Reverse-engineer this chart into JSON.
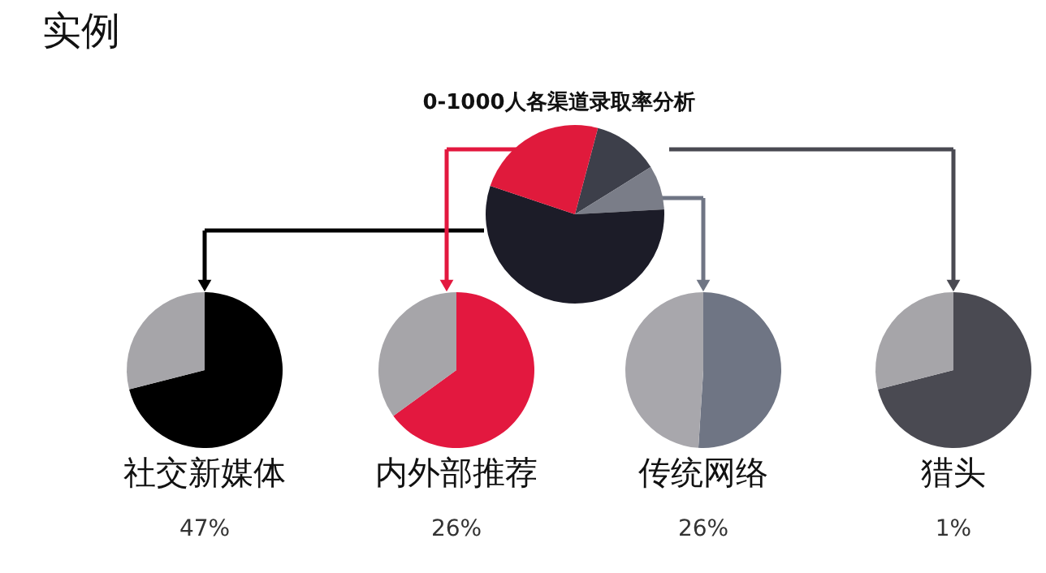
{
  "chart_data": [
    {
      "type": "pie",
      "title": "0-1000人各渠道录取率分析",
      "annotations": [
        "实例"
      ],
      "categories": [
        null,
        null,
        null,
        null
      ],
      "values": [
        12,
        8,
        56,
        24
      ],
      "colors": [
        "#3d3f4a",
        "#7a7d88",
        "#1c1c28",
        "#e01a3c"
      ]
    },
    {
      "type": "pie",
      "title": "社交新媒体",
      "annotations": [
        "47%"
      ],
      "categories": [
        null,
        null
      ],
      "values": [
        71,
        29
      ],
      "colors": [
        "#000000",
        "#a6a5a9"
      ]
    },
    {
      "type": "pie",
      "title": "内外部推荐",
      "annotations": [
        "26%"
      ],
      "categories": [
        null,
        null
      ],
      "values": [
        65,
        35
      ],
      "colors": [
        "#e3183f",
        "#a6a5a9"
      ]
    },
    {
      "type": "pie",
      "title": "传统网络",
      "annotations": [
        "26%"
      ],
      "categories": [
        null,
        null
      ],
      "values": [
        51,
        49
      ],
      "colors": [
        "#6f7584",
        "#a8a7ac"
      ]
    },
    {
      "type": "pie",
      "title": "猎头",
      "annotations": [
        "1%"
      ],
      "categories": [
        null,
        null
      ],
      "values": [
        71,
        29
      ],
      "colors": [
        "#4a4a52",
        "#a6a5a9"
      ]
    }
  ]
}
